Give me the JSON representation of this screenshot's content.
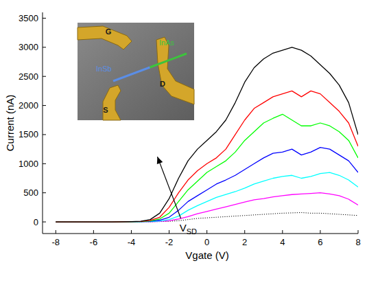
{
  "chart_data": {
    "type": "line",
    "x_label": "Vgate (V)",
    "y_label": "Current (nA)",
    "x": [
      -8,
      -7.5,
      -7,
      -6.5,
      -6,
      -5.5,
      -5,
      -4.5,
      -4,
      -3.5,
      -3,
      -2.5,
      -2,
      -1.5,
      -1,
      -0.5,
      0,
      0.5,
      1,
      1.5,
      2,
      2.5,
      3,
      3.5,
      4,
      4.5,
      5,
      5.5,
      6,
      6.5,
      7,
      7.5,
      8
    ],
    "xlim": [
      -8.7,
      8
    ],
    "ylim": [
      -200,
      3600
    ],
    "xticks": [
      -8,
      -6,
      -4,
      -2,
      0,
      2,
      4,
      6,
      8
    ],
    "yticks": [
      0,
      500,
      1000,
      1500,
      2000,
      2500,
      3000,
      3500
    ],
    "grid": false,
    "series": [
      {
        "color": "#000000",
        "line_style": "solid",
        "values": [
          0,
          0,
          0,
          0,
          0,
          0,
          0,
          2,
          5,
          10,
          40,
          150,
          400,
          750,
          1050,
          1250,
          1400,
          1550,
          1750,
          2050,
          2400,
          2650,
          2800,
          2900,
          2950,
          3000,
          2950,
          2850,
          2700,
          2550,
          2350,
          2050,
          1500
        ]
      },
      {
        "color": "#ff0000",
        "line_style": "solid",
        "values": [
          0,
          0,
          0,
          0,
          0,
          0,
          0,
          2,
          4,
          8,
          25,
          80,
          250,
          500,
          720,
          880,
          1000,
          1100,
          1250,
          1500,
          1750,
          1950,
          2050,
          2150,
          2200,
          2250,
          2150,
          2250,
          2200,
          2050,
          1900,
          1700,
          1300
        ]
      },
      {
        "color": "#00ff00",
        "line_style": "solid",
        "values": [
          0,
          0,
          0,
          0,
          0,
          0,
          0,
          1,
          3,
          6,
          18,
          50,
          150,
          350,
          550,
          700,
          850,
          950,
          1050,
          1200,
          1400,
          1550,
          1700,
          1780,
          1850,
          1750,
          1650,
          1650,
          1700,
          1650,
          1550,
          1400,
          1100
        ]
      },
      {
        "color": "#0000ff",
        "line_style": "solid",
        "values": [
          0,
          0,
          0,
          0,
          0,
          0,
          0,
          1,
          2,
          4,
          10,
          30,
          80,
          200,
          350,
          450,
          550,
          650,
          720,
          800,
          900,
          1000,
          1100,
          1180,
          1200,
          1250,
          1150,
          1200,
          1280,
          1250,
          1150,
          1050,
          850
        ]
      },
      {
        "color": "#00ffff",
        "line_style": "solid",
        "values": [
          0,
          0,
          0,
          0,
          0,
          0,
          0,
          0,
          1,
          2,
          5,
          15,
          40,
          100,
          200,
          280,
          350,
          420,
          470,
          520,
          580,
          650,
          700,
          750,
          780,
          800,
          750,
          780,
          830,
          850,
          800,
          720,
          600
        ]
      },
      {
        "color": "#ff00ff",
        "line_style": "solid",
        "values": [
          0,
          0,
          0,
          0,
          0,
          0,
          0,
          0,
          0,
          1,
          3,
          8,
          20,
          50,
          90,
          140,
          180,
          220,
          260,
          300,
          340,
          380,
          400,
          430,
          450,
          470,
          480,
          490,
          500,
          480,
          450,
          390,
          290
        ]
      },
      {
        "color": "#000000",
        "line_style": "dotted",
        "values": [
          0,
          0,
          0,
          0,
          0,
          0,
          0,
          0,
          0,
          0,
          2,
          5,
          10,
          20,
          40,
          60,
          70,
          80,
          90,
          100,
          110,
          120,
          130,
          140,
          150,
          155,
          160,
          150,
          150,
          140,
          130,
          120,
          110
        ]
      }
    ],
    "annotations": [
      {
        "text": "V",
        "subscript": "SD",
        "x": -1.45,
        "y": -170,
        "arrow": {
          "x": -1.38,
          "y": 60,
          "x_end": -2.62,
          "y_end": 1120
        }
      }
    ],
    "inset": {
      "electrodes": [
        "G",
        "S",
        "D"
      ],
      "segments": [
        {
          "text": "InSb",
          "color": "#5b8ee6"
        },
        {
          "text": "InAs",
          "color": "#3cc43c"
        }
      ]
    }
  }
}
